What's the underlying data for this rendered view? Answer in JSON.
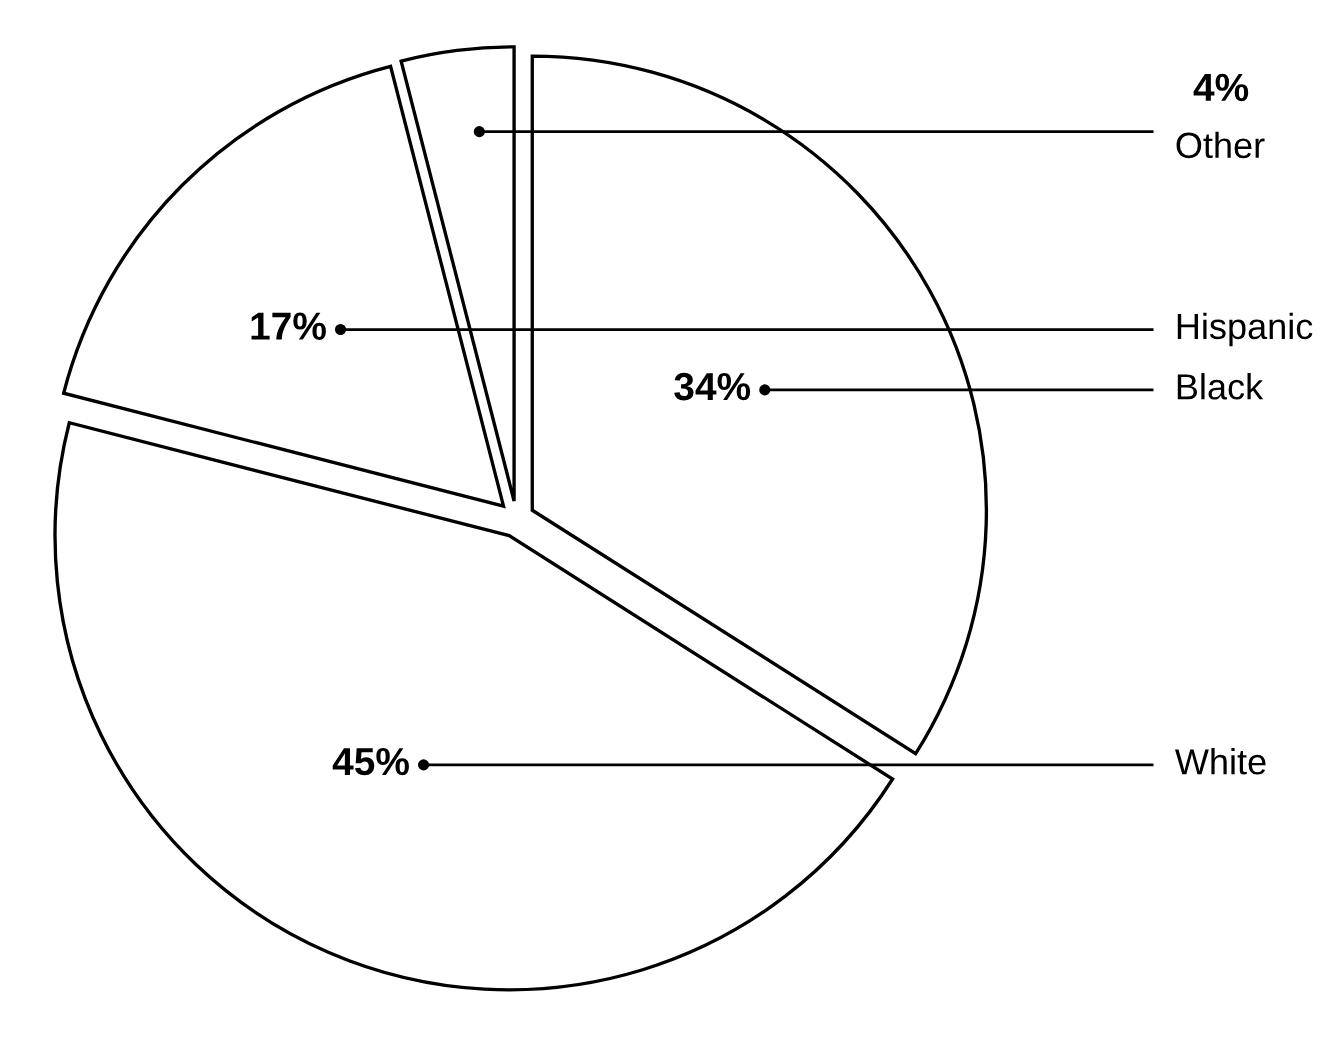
{
  "chart_data": {
    "type": "pie",
    "categories": [
      "Black",
      "White",
      "Hispanic",
      "Other"
    ],
    "values": [
      34,
      45,
      17,
      4
    ],
    "colors": [
      "#ffffff",
      "#ffffff",
      "#ffffff",
      "#ffffff"
    ],
    "value_labels": [
      "34%",
      "45%",
      "17%",
      "4%"
    ],
    "legend": false
  }
}
